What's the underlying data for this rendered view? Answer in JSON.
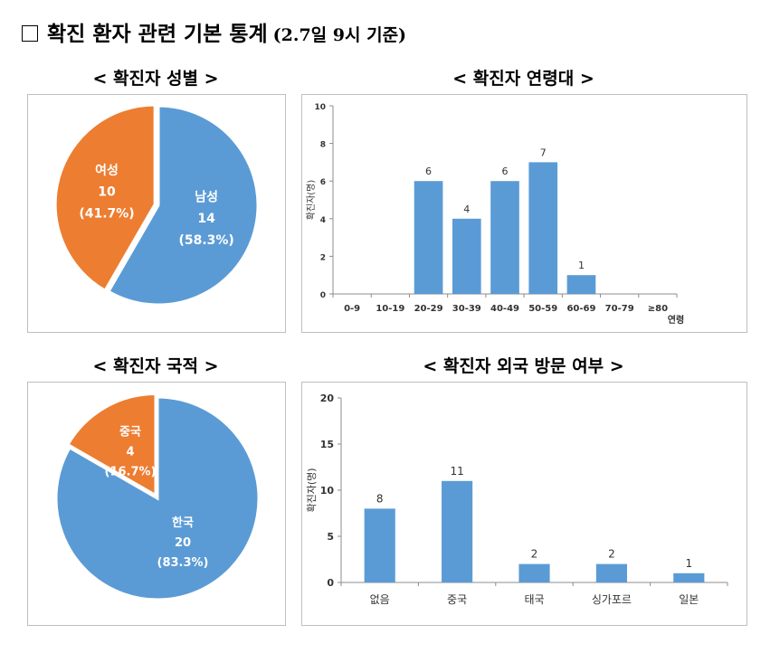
{
  "header": {
    "title": "확진 환자 관련 기본 통계",
    "subtitle": "(2.7일 9시 기준)"
  },
  "colors": {
    "blue": "#5b9bd5",
    "orange": "#ed7d31"
  },
  "chart_data": [
    {
      "id": "gender",
      "type": "pie",
      "title": "< 확진자 성별 >",
      "slices": [
        {
          "name": "남성",
          "value": 14,
          "percent": "(58.3%)",
          "color": "#5b9bd5"
        },
        {
          "name": "여성",
          "value": 10,
          "percent": "(41.7%)",
          "color": "#ed7d31"
        }
      ]
    },
    {
      "id": "age",
      "type": "bar",
      "title": "< 확진자 연령대 >",
      "categories": [
        "0-9",
        "10-19",
        "20-29",
        "30-39",
        "40-49",
        "50-59",
        "60-69",
        "70-79",
        "≥80"
      ],
      "values": [
        0,
        0,
        6,
        4,
        6,
        7,
        1,
        0,
        0
      ],
      "ylabel": "확진자(명)",
      "xlabel": "연령",
      "ylim": [
        0,
        10
      ],
      "yticks": [
        0,
        2,
        4,
        6,
        8,
        10
      ],
      "color": "#5b9bd5"
    },
    {
      "id": "nationality",
      "type": "pie",
      "title": "< 확진자 국적 >",
      "slices": [
        {
          "name": "한국",
          "value": 20,
          "percent": "(83.3%)",
          "color": "#5b9bd5"
        },
        {
          "name": "중국",
          "value": 4,
          "percent": "(16.7%)",
          "color": "#ed7d31"
        }
      ]
    },
    {
      "id": "travel",
      "type": "bar",
      "title": "< 확진자 외국 방문 여부 >",
      "categories": [
        "없음",
        "중국",
        "태국",
        "싱가포르",
        "일본"
      ],
      "values": [
        8,
        11,
        2,
        2,
        1
      ],
      "ylabel": "확진자(명)",
      "xlabel": "",
      "ylim": [
        0,
        20
      ],
      "yticks": [
        0,
        5,
        10,
        15,
        20
      ],
      "color": "#5b9bd5"
    }
  ]
}
